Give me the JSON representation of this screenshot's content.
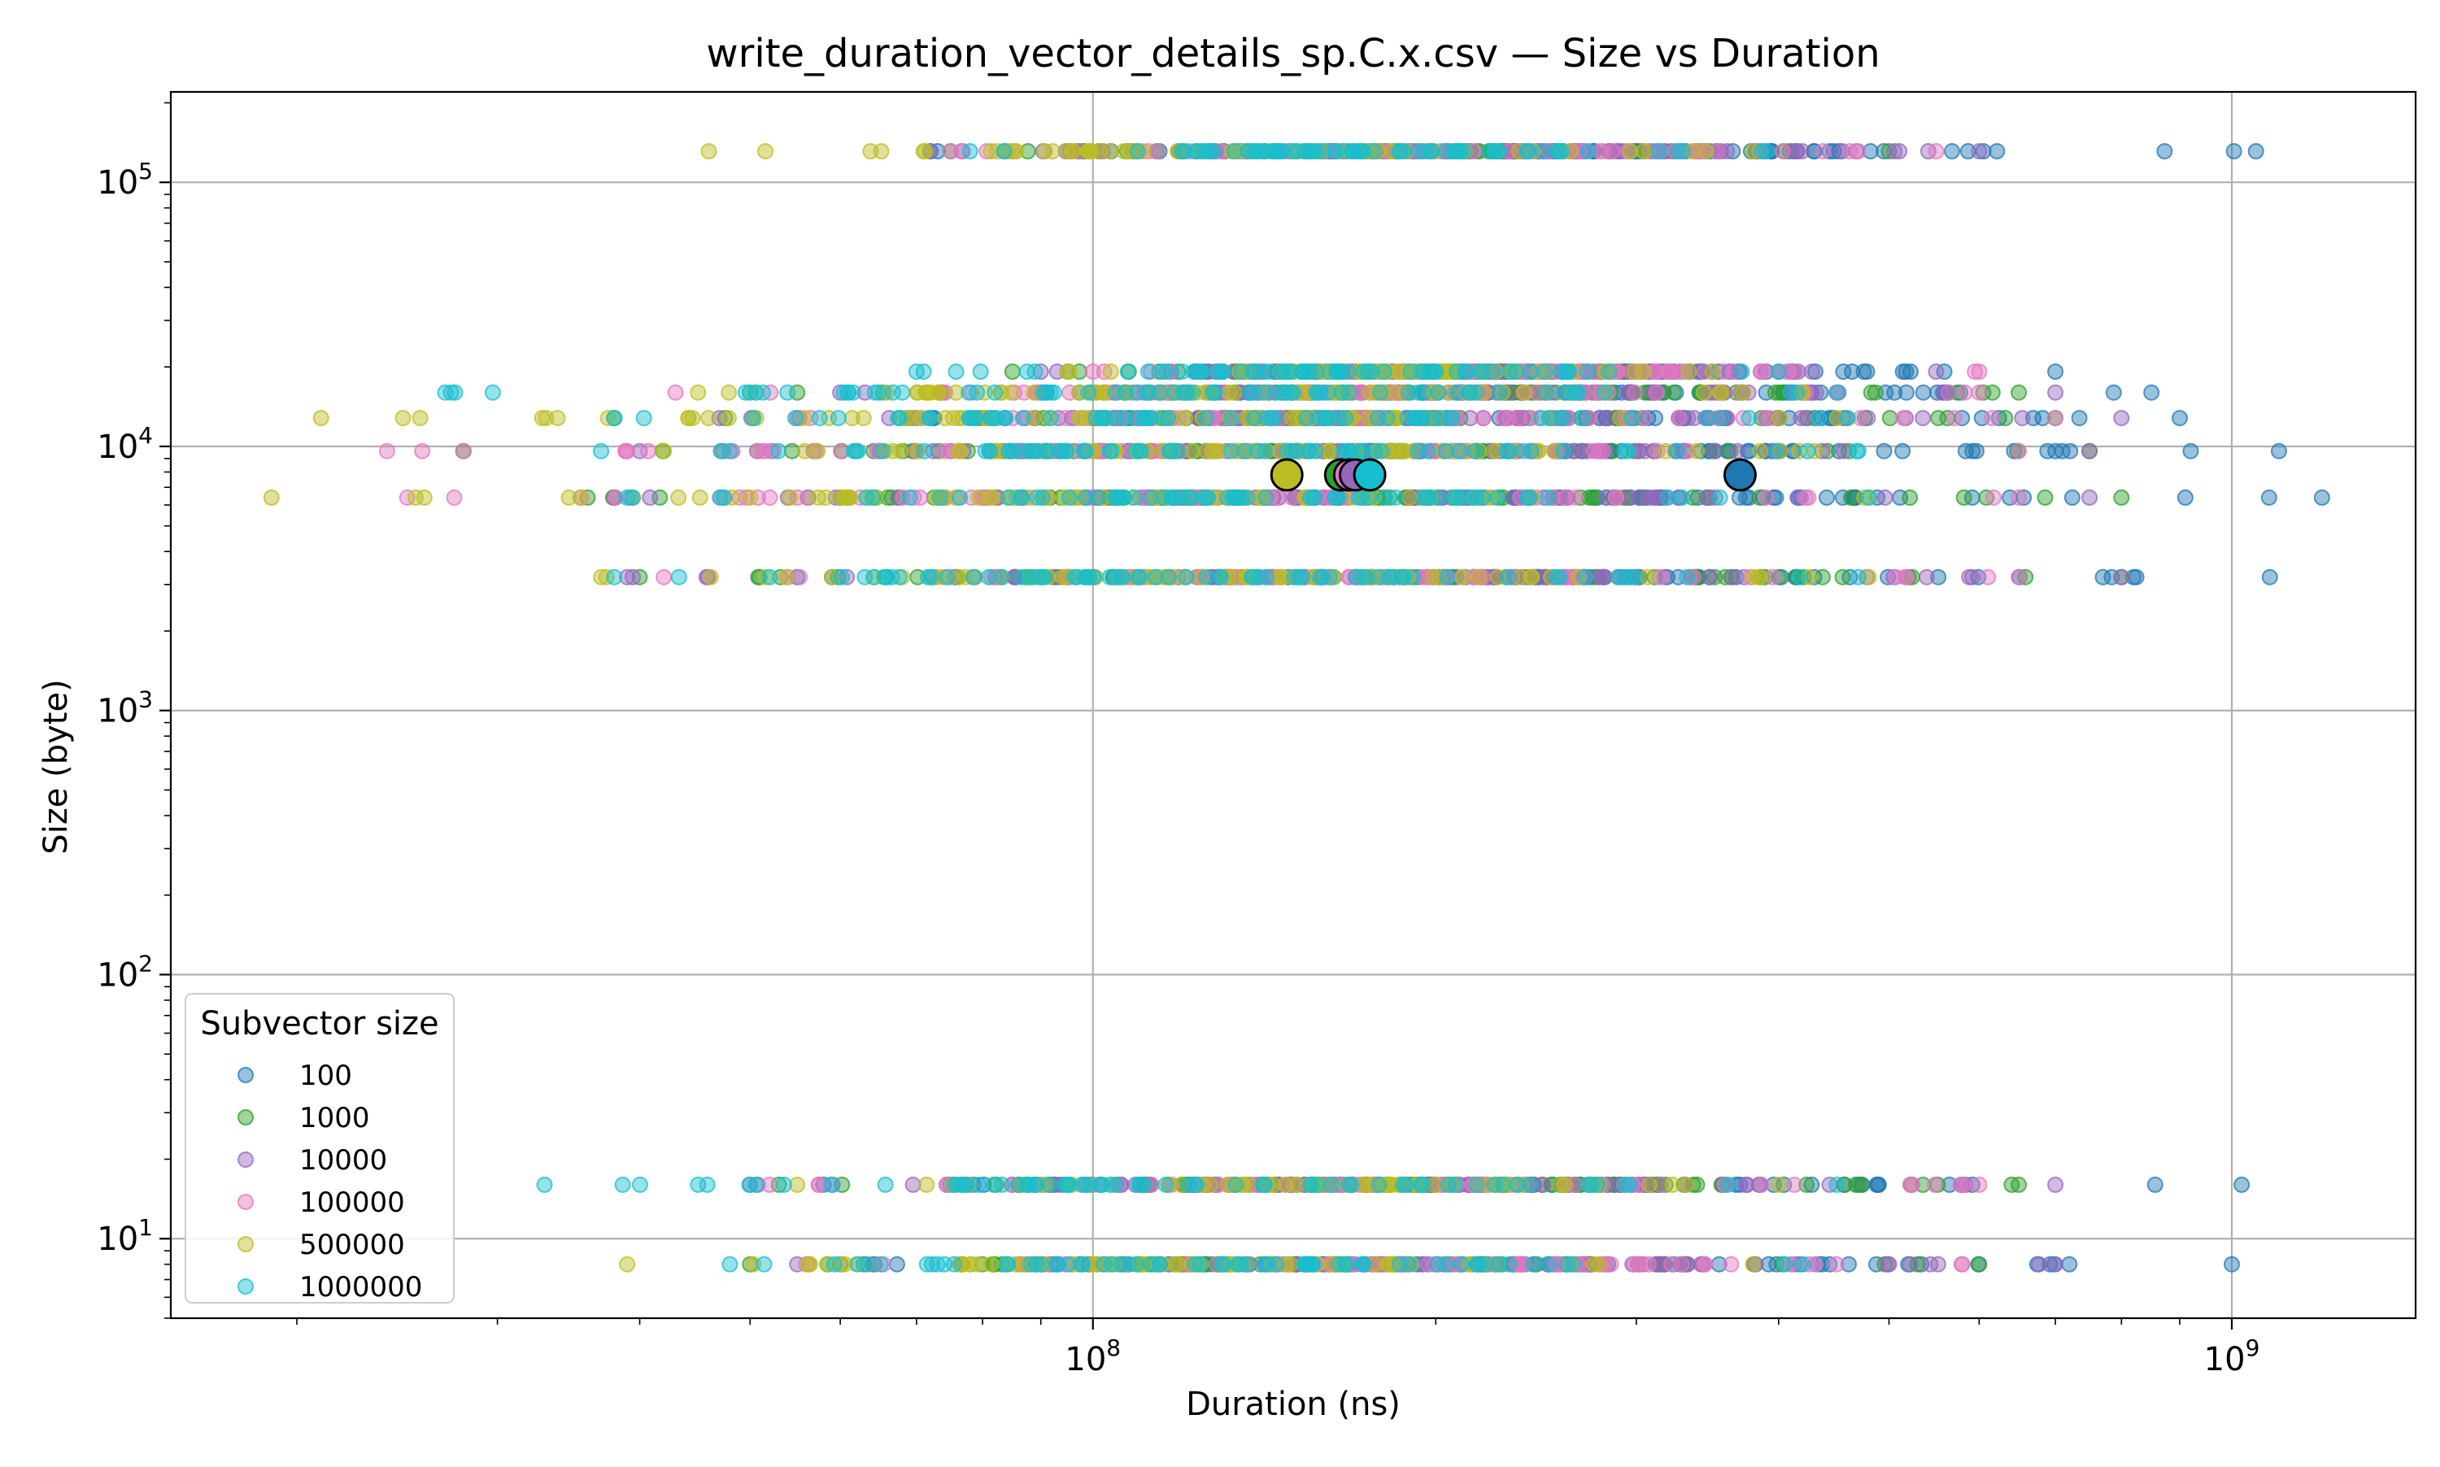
{
  "chart_data": {
    "type": "scatter",
    "title": "write_duration_vector_details_sp.C.x.csv — Size vs Duration",
    "xlabel": "Duration (ns)",
    "ylabel": "Size (byte)",
    "xscale": "log",
    "yscale": "log",
    "xlim": [
      15500000,
      1450000000
    ],
    "ylim": [
      5,
      220000
    ],
    "grid": true,
    "x_ticks": [
      {
        "value": 100000000,
        "base": "10",
        "exp": "8"
      },
      {
        "value": 1000000000,
        "base": "10",
        "exp": "9"
      }
    ],
    "y_ticks": [
      {
        "value": 10,
        "base": "10",
        "exp": "1"
      },
      {
        "value": 100,
        "base": "10",
        "exp": "2"
      },
      {
        "value": 1000,
        "base": "10",
        "exp": "3"
      },
      {
        "value": 10000,
        "base": "10",
        "exp": "4"
      },
      {
        "value": 100000,
        "base": "10",
        "exp": "5"
      }
    ],
    "legend": {
      "title": "Subvector size",
      "placement": "lower-left"
    },
    "series": [
      {
        "name": "100",
        "color": "#1f77b4",
        "size_rows": [
          {
            "y": 131072,
            "x_min": 72000000,
            "x_max": 1050000000
          },
          {
            "y": 19200,
            "x_min": 95000000,
            "x_max": 700000000
          },
          {
            "y": 16000,
            "x_min": 90000000,
            "x_max": 850000000
          },
          {
            "y": 12800,
            "x_min": 70000000,
            "x_max": 900000000
          },
          {
            "y": 9600,
            "x_min": 65000000,
            "x_max": 1100000000
          },
          {
            "y": 6400,
            "x_min": 60000000,
            "x_max": 1200000000
          },
          {
            "y": 3200,
            "x_min": 55000000,
            "x_max": 1080000000
          },
          {
            "y": 16,
            "x_min": 58000000,
            "x_max": 1020000000
          },
          {
            "y": 8,
            "x_min": 60000000,
            "x_max": 1000000000
          }
        ],
        "mean_point": {
          "x": 370000000,
          "y": 7800
        }
      },
      {
        "name": "1000",
        "color": "#2ca02c",
        "size_rows": [
          {
            "y": 131072,
            "x_min": 75000000,
            "x_max": 500000000
          },
          {
            "y": 19200,
            "x_min": 85000000,
            "x_max": 400000000
          },
          {
            "y": 16000,
            "x_min": 55000000,
            "x_max": 650000000
          },
          {
            "y": 12800,
            "x_min": 38000000,
            "x_max": 700000000
          },
          {
            "y": 9600,
            "x_min": 28000000,
            "x_max": 750000000
          },
          {
            "y": 6400,
            "x_min": 36000000,
            "x_max": 800000000
          },
          {
            "y": 3200,
            "x_min": 40000000,
            "x_max": 800000000
          },
          {
            "y": 16,
            "x_min": 53000000,
            "x_max": 650000000
          },
          {
            "y": 8,
            "x_min": 50000000,
            "x_max": 600000000
          }
        ],
        "mean_point": {
          "x": 165000000,
          "y": 7800
        }
      },
      {
        "name": "10000",
        "color": "#9467bd",
        "size_rows": [
          {
            "y": 131072,
            "x_min": 72000000,
            "x_max": 600000000
          },
          {
            "y": 19200,
            "x_min": 90000000,
            "x_max": 550000000
          },
          {
            "y": 16000,
            "x_min": 60000000,
            "x_max": 700000000
          },
          {
            "y": 12800,
            "x_min": 47000000,
            "x_max": 800000000
          },
          {
            "y": 9600,
            "x_min": 40000000,
            "x_max": 750000000
          },
          {
            "y": 6400,
            "x_min": 38000000,
            "x_max": 750000000
          },
          {
            "y": 3200,
            "x_min": 39000000,
            "x_max": 800000000
          },
          {
            "y": 16,
            "x_min": 50000000,
            "x_max": 700000000
          },
          {
            "y": 8,
            "x_min": 55000000,
            "x_max": 700000000
          }
        ],
        "mean_point": {
          "x": 170000000,
          "y": 7800
        }
      },
      {
        "name": "100000",
        "color": "#e377c2",
        "size_rows": [
          {
            "y": 131072,
            "x_min": 75000000,
            "x_max": 550000000
          },
          {
            "y": 19200,
            "x_min": 100000000,
            "x_max": 600000000
          },
          {
            "y": 16000,
            "x_min": 43000000,
            "x_max": 600000000
          },
          {
            "y": 12800,
            "x_min": 55000000,
            "x_max": 700000000
          },
          {
            "y": 9600,
            "x_min": 24000000,
            "x_max": 650000000
          },
          {
            "y": 6400,
            "x_min": 25000000,
            "x_max": 650000000
          },
          {
            "y": 3200,
            "x_min": 42000000,
            "x_max": 650000000
          },
          {
            "y": 16,
            "x_min": 52000000,
            "x_max": 600000000
          },
          {
            "y": 8,
            "x_min": 56000000,
            "x_max": 580000000
          }
        ],
        "mean_point": {
          "x": 168000000,
          "y": 7800
        }
      },
      {
        "name": "500000",
        "color": "#bcbd22",
        "size_rows": [
          {
            "y": 131072,
            "x_min": 46000000,
            "x_max": 380000000
          },
          {
            "y": 19200,
            "x_min": 95000000,
            "x_max": 350000000
          },
          {
            "y": 16000,
            "x_min": 45000000,
            "x_max": 420000000
          },
          {
            "y": 12800,
            "x_min": 21000000,
            "x_max": 450000000
          },
          {
            "y": 9600,
            "x_min": 42000000,
            "x_max": 430000000
          },
          {
            "y": 6400,
            "x_min": 19000000,
            "x_max": 480000000
          },
          {
            "y": 3200,
            "x_min": 37000000,
            "x_max": 480000000
          },
          {
            "y": 16,
            "x_min": 55000000,
            "x_max": 400000000
          },
          {
            "y": 8,
            "x_min": 39000000,
            "x_max": 380000000
          }
        ],
        "mean_point": {
          "x": 148000000,
          "y": 7800
        }
      },
      {
        "name": "1000000",
        "color": "#17becf",
        "size_rows": [
          {
            "y": 131072,
            "x_min": 78000000,
            "x_max": 390000000
          },
          {
            "y": 19200,
            "x_min": 70000000,
            "x_max": 400000000
          },
          {
            "y": 16000,
            "x_min": 27000000,
            "x_max": 450000000
          },
          {
            "y": 12800,
            "x_min": 38000000,
            "x_max": 460000000
          },
          {
            "y": 9600,
            "x_min": 37000000,
            "x_max": 470000000
          },
          {
            "y": 6400,
            "x_min": 39000000,
            "x_max": 480000000
          },
          {
            "y": 3200,
            "x_min": 38000000,
            "x_max": 470000000
          },
          {
            "y": 16,
            "x_min": 33000000,
            "x_max": 450000000
          },
          {
            "y": 8,
            "x_min": 48000000,
            "x_max": 420000000
          }
        ],
        "mean_point": {
          "x": 175000000,
          "y": 7800
        }
      }
    ]
  }
}
